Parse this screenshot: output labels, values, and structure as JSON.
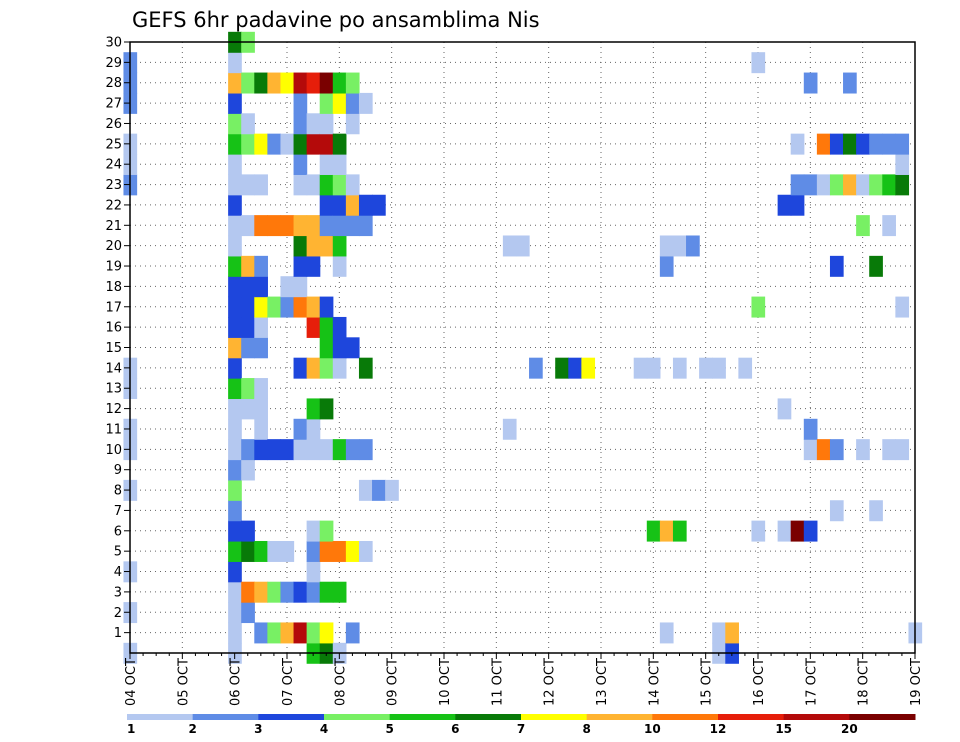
{
  "chart_data": {
    "type": "heatmap",
    "title": "GEFS 6hr padavine po ansamblima Nis",
    "x_unit": "6-hour step (0 = 04 OCT 00Z)",
    "x_range": [
      0,
      60
    ],
    "y_range": [
      0,
      30
    ],
    "grid": "dotted",
    "x_tick_labels": [
      "04 OCT",
      "05 OCT",
      "06 OCT",
      "07 OCT",
      "08 OCT",
      "09 OCT",
      "10 OCT",
      "11 OCT",
      "12 OCT",
      "13 OCT",
      "14 OCT",
      "15 OCT",
      "16 OCT",
      "17 OCT",
      "18 OCT",
      "19 OCT"
    ],
    "y_tick_labels": [
      "1",
      "2",
      "3",
      "4",
      "5",
      "6",
      "7",
      "8",
      "9",
      "10",
      "11",
      "12",
      "13",
      "14",
      "15",
      "16",
      "17",
      "18",
      "19",
      "20",
      "21",
      "22",
      "23",
      "24",
      "25",
      "26",
      "27",
      "28",
      "29",
      "30"
    ],
    "legend": {
      "position": "bottom",
      "colors": [
        "#b4c8f0",
        "#5f8ce6",
        "#1e46dc",
        "#78f064",
        "#16c216",
        "#087a08",
        "#ffff00",
        "#ffb432",
        "#ff780a",
        "#e61e0a",
        "#b40a0a",
        "#7a0000"
      ],
      "labels": [
        "1",
        "2",
        "3",
        "4",
        "5",
        "6",
        "7",
        "8",
        "10",
        "12",
        "15",
        "20"
      ]
    },
    "cells": [
      [
        0,
        0,
        1
      ],
      [
        0,
        2,
        1
      ],
      [
        0,
        4,
        1
      ],
      [
        0,
        8,
        1
      ],
      [
        0,
        10,
        1
      ],
      [
        0,
        11,
        1
      ],
      [
        0,
        13,
        1
      ],
      [
        0,
        14,
        1
      ],
      [
        0,
        23,
        2
      ],
      [
        0,
        24,
        1
      ],
      [
        0,
        25,
        1
      ],
      [
        0,
        27,
        2
      ],
      [
        0,
        28,
        2
      ],
      [
        0,
        29,
        2
      ],
      [
        8,
        0,
        1
      ],
      [
        8,
        1,
        1
      ],
      [
        8,
        2,
        1
      ],
      [
        8,
        3,
        1
      ],
      [
        8,
        4,
        3
      ],
      [
        8,
        5,
        5
      ],
      [
        8,
        6,
        3
      ],
      [
        8,
        7,
        2
      ],
      [
        8,
        8,
        4
      ],
      [
        8,
        9,
        2
      ],
      [
        8,
        10,
        1
      ],
      [
        8,
        11,
        1
      ],
      [
        8,
        12,
        1
      ],
      [
        8,
        13,
        5
      ],
      [
        8,
        14,
        3
      ],
      [
        8,
        15,
        8
      ],
      [
        8,
        16,
        3
      ],
      [
        8,
        17,
        3
      ],
      [
        8,
        18,
        3
      ],
      [
        8,
        19,
        5
      ],
      [
        8,
        20,
        1
      ],
      [
        8,
        21,
        1
      ],
      [
        8,
        22,
        3
      ],
      [
        8,
        23,
        1
      ],
      [
        8,
        24,
        1
      ],
      [
        8,
        25,
        5
      ],
      [
        8,
        26,
        4
      ],
      [
        8,
        27,
        3
      ],
      [
        8,
        28,
        8
      ],
      [
        8,
        29,
        1
      ],
      [
        8,
        30,
        6
      ],
      [
        9,
        2,
        2
      ],
      [
        9,
        3,
        9
      ],
      [
        9,
        5,
        6
      ],
      [
        9,
        6,
        3
      ],
      [
        9,
        9,
        1
      ],
      [
        9,
        10,
        2
      ],
      [
        9,
        12,
        1
      ],
      [
        9,
        13,
        4
      ],
      [
        9,
        15,
        2
      ],
      [
        9,
        16,
        3
      ],
      [
        9,
        17,
        3
      ],
      [
        9,
        18,
        3
      ],
      [
        9,
        19,
        8
      ],
      [
        9,
        21,
        1
      ],
      [
        9,
        23,
        1
      ],
      [
        9,
        25,
        4
      ],
      [
        9,
        26,
        1
      ],
      [
        9,
        28,
        4
      ],
      [
        9,
        30,
        4
      ],
      [
        10,
        1,
        2
      ],
      [
        10,
        3,
        8
      ],
      [
        10,
        5,
        5
      ],
      [
        10,
        10,
        3
      ],
      [
        10,
        11,
        1
      ],
      [
        10,
        12,
        1
      ],
      [
        10,
        13,
        1
      ],
      [
        10,
        15,
        2
      ],
      [
        10,
        16,
        1
      ],
      [
        10,
        17,
        7
      ],
      [
        10,
        18,
        3
      ],
      [
        10,
        19,
        2
      ],
      [
        10,
        21,
        9
      ],
      [
        10,
        23,
        1
      ],
      [
        10,
        25,
        7
      ],
      [
        10,
        28,
        6
      ],
      [
        11,
        1,
        4
      ],
      [
        11,
        3,
        4
      ],
      [
        11,
        5,
        1
      ],
      [
        11,
        10,
        3
      ],
      [
        11,
        17,
        4
      ],
      [
        11,
        21,
        9
      ],
      [
        11,
        25,
        2
      ],
      [
        11,
        28,
        8
      ],
      [
        12,
        1,
        8
      ],
      [
        12,
        3,
        2
      ],
      [
        12,
        5,
        1
      ],
      [
        12,
        10,
        3
      ],
      [
        12,
        17,
        2
      ],
      [
        12,
        18,
        1
      ],
      [
        12,
        21,
        9
      ],
      [
        12,
        25,
        1
      ],
      [
        12,
        28,
        7
      ],
      [
        13,
        1,
        11
      ],
      [
        13,
        3,
        3
      ],
      [
        13,
        10,
        1
      ],
      [
        13,
        11,
        2
      ],
      [
        13,
        14,
        3
      ],
      [
        13,
        17,
        9
      ],
      [
        13,
        18,
        1
      ],
      [
        13,
        19,
        3
      ],
      [
        13,
        20,
        6
      ],
      [
        13,
        21,
        8
      ],
      [
        13,
        23,
        1
      ],
      [
        13,
        24,
        2
      ],
      [
        13,
        25,
        6
      ],
      [
        13,
        26,
        2
      ],
      [
        13,
        27,
        2
      ],
      [
        13,
        28,
        11
      ],
      [
        14,
        0,
        5
      ],
      [
        14,
        1,
        4
      ],
      [
        14,
        3,
        2
      ],
      [
        14,
        4,
        1
      ],
      [
        14,
        5,
        2
      ],
      [
        14,
        6,
        1
      ],
      [
        14,
        10,
        1
      ],
      [
        14,
        11,
        1
      ],
      [
        14,
        12,
        5
      ],
      [
        14,
        14,
        8
      ],
      [
        14,
        16,
        10
      ],
      [
        14,
        17,
        8
      ],
      [
        14,
        19,
        3
      ],
      [
        14,
        20,
        8
      ],
      [
        14,
        21,
        8
      ],
      [
        14,
        23,
        1
      ],
      [
        14,
        25,
        11
      ],
      [
        14,
        26,
        1
      ],
      [
        14,
        28,
        10
      ],
      [
        15,
        0,
        6
      ],
      [
        15,
        1,
        7
      ],
      [
        15,
        3,
        5
      ],
      [
        15,
        5,
        9
      ],
      [
        15,
        6,
        4
      ],
      [
        15,
        10,
        1
      ],
      [
        15,
        12,
        6
      ],
      [
        15,
        14,
        4
      ],
      [
        15,
        15,
        5
      ],
      [
        15,
        16,
        5
      ],
      [
        15,
        17,
        3
      ],
      [
        15,
        20,
        8
      ],
      [
        15,
        21,
        2
      ],
      [
        15,
        22,
        3
      ],
      [
        15,
        23,
        5
      ],
      [
        15,
        24,
        1
      ],
      [
        15,
        25,
        11
      ],
      [
        15,
        26,
        1
      ],
      [
        15,
        27,
        4
      ],
      [
        15,
        28,
        12
      ],
      [
        16,
        0,
        1
      ],
      [
        16,
        3,
        5
      ],
      [
        16,
        5,
        9
      ],
      [
        16,
        10,
        5
      ],
      [
        16,
        14,
        1
      ],
      [
        16,
        15,
        3
      ],
      [
        16,
        16,
        3
      ],
      [
        16,
        19,
        1
      ],
      [
        16,
        20,
        5
      ],
      [
        16,
        21,
        2
      ],
      [
        16,
        22,
        3
      ],
      [
        16,
        23,
        4
      ],
      [
        16,
        24,
        1
      ],
      [
        16,
        25,
        6
      ],
      [
        16,
        27,
        7
      ],
      [
        16,
        28,
        5
      ],
      [
        17,
        1,
        2
      ],
      [
        17,
        5,
        7
      ],
      [
        17,
        10,
        2
      ],
      [
        17,
        15,
        3
      ],
      [
        17,
        21,
        2
      ],
      [
        17,
        22,
        8
      ],
      [
        17,
        23,
        1
      ],
      [
        17,
        26,
        1
      ],
      [
        17,
        27,
        2
      ],
      [
        17,
        28,
        4
      ],
      [
        18,
        5,
        1
      ],
      [
        18,
        8,
        1
      ],
      [
        18,
        10,
        2
      ],
      [
        18,
        14,
        6
      ],
      [
        18,
        21,
        2
      ],
      [
        18,
        22,
        3
      ],
      [
        18,
        27,
        1
      ],
      [
        19,
        8,
        2
      ],
      [
        19,
        22,
        3
      ],
      [
        20,
        8,
        1
      ],
      [
        29,
        11,
        1
      ],
      [
        29,
        20,
        1
      ],
      [
        30,
        20,
        1
      ],
      [
        31,
        14,
        2
      ],
      [
        33,
        14,
        6
      ],
      [
        34,
        14,
        3
      ],
      [
        35,
        14,
        7
      ],
      [
        39,
        14,
        1
      ],
      [
        40,
        6,
        5
      ],
      [
        40,
        14,
        1
      ],
      [
        41,
        1,
        1
      ],
      [
        41,
        6,
        8
      ],
      [
        41,
        19,
        2
      ],
      [
        41,
        20,
        1
      ],
      [
        42,
        6,
        5
      ],
      [
        42,
        14,
        1
      ],
      [
        42,
        20,
        1
      ],
      [
        43,
        20,
        2
      ],
      [
        44,
        14,
        1
      ],
      [
        45,
        0,
        1
      ],
      [
        45,
        1,
        1
      ],
      [
        45,
        14,
        1
      ],
      [
        46,
        0,
        3
      ],
      [
        46,
        1,
        8
      ],
      [
        47,
        14,
        1
      ],
      [
        48,
        6,
        1
      ],
      [
        48,
        17,
        4
      ],
      [
        48,
        29,
        1
      ],
      [
        50,
        6,
        1
      ],
      [
        50,
        12,
        1
      ],
      [
        50,
        22,
        3
      ],
      [
        51,
        6,
        12
      ],
      [
        51,
        22,
        3
      ],
      [
        51,
        23,
        2
      ],
      [
        51,
        25,
        1
      ],
      [
        52,
        6,
        3
      ],
      [
        52,
        10,
        1
      ],
      [
        52,
        11,
        2
      ],
      [
        52,
        23,
        2
      ],
      [
        52,
        28,
        2
      ],
      [
        53,
        10,
        9
      ],
      [
        53,
        23,
        1
      ],
      [
        53,
        25,
        9
      ],
      [
        54,
        7,
        1
      ],
      [
        54,
        10,
        2
      ],
      [
        54,
        19,
        3
      ],
      [
        54,
        23,
        4
      ],
      [
        54,
        25,
        3
      ],
      [
        55,
        23,
        8
      ],
      [
        55,
        25,
        6
      ],
      [
        55,
        28,
        2
      ],
      [
        56,
        10,
        1
      ],
      [
        56,
        21,
        4
      ],
      [
        56,
        23,
        1
      ],
      [
        56,
        25,
        3
      ],
      [
        57,
        7,
        1
      ],
      [
        57,
        19,
        6
      ],
      [
        57,
        23,
        4
      ],
      [
        57,
        25,
        2
      ],
      [
        58,
        10,
        1
      ],
      [
        58,
        21,
        1
      ],
      [
        58,
        23,
        5
      ],
      [
        58,
        25,
        2
      ],
      [
        59,
        10,
        1
      ],
      [
        59,
        17,
        1
      ],
      [
        59,
        23,
        6
      ],
      [
        59,
        24,
        1
      ],
      [
        59,
        25,
        2
      ],
      [
        60,
        1,
        1
      ]
    ]
  }
}
